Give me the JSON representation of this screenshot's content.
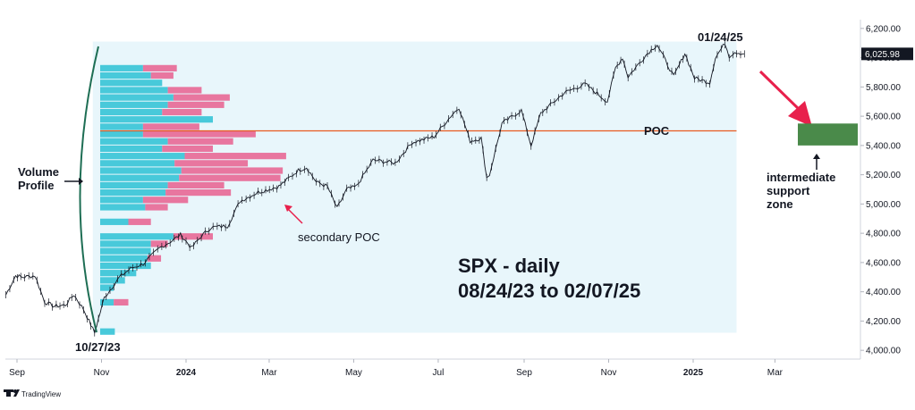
{
  "chart_data": {
    "type": "line",
    "title": "SPX - daily",
    "subtitle": "08/24/23 to 02/07/25",
    "ylim": [
      3940,
      6260
    ],
    "y_ticks": [
      {
        "value": 4000,
        "label": "4,000.00"
      },
      {
        "value": 4200,
        "label": "4,200.00"
      },
      {
        "value": 4400,
        "label": "4,400.00"
      },
      {
        "value": 4600,
        "label": "4,600.00"
      },
      {
        "value": 4800,
        "label": "4,800.00"
      },
      {
        "value": 5000,
        "label": "5,000.00"
      },
      {
        "value": 5200,
        "label": "5,200.00"
      },
      {
        "value": 5400,
        "label": "5,400.00"
      },
      {
        "value": 5600,
        "label": "5,600.00"
      },
      {
        "value": 5800,
        "label": "5,800.00"
      },
      {
        "value": 6000,
        "label": "6,000.00"
      },
      {
        "value": 6200,
        "label": "6,200.00"
      }
    ],
    "x_ticks": [
      {
        "date": "2023-09-01",
        "label": "Sep",
        "bold": false
      },
      {
        "date": "2023-11-01",
        "label": "Nov",
        "bold": false
      },
      {
        "date": "2024-01-01",
        "label": "2024",
        "bold": true
      },
      {
        "date": "2024-03-01",
        "label": "Mar",
        "bold": false
      },
      {
        "date": "2024-05-01",
        "label": "May",
        "bold": false
      },
      {
        "date": "2024-07-01",
        "label": "Jul",
        "bold": false
      },
      {
        "date": "2024-09-01",
        "label": "Sep",
        "bold": false
      },
      {
        "date": "2024-11-01",
        "label": "Nov",
        "bold": false
      },
      {
        "date": "2025-01-01",
        "label": "2025",
        "bold": true
      },
      {
        "date": "2025-03-01",
        "label": "Mar",
        "bold": false
      }
    ],
    "last_price": {
      "value": 6025.98,
      "label": "6,025.98"
    },
    "series": [
      {
        "points": [
          [
            "2023-08-24",
            4380
          ],
          [
            "2023-08-31",
            4510
          ],
          [
            "2023-09-05",
            4500
          ],
          [
            "2023-09-14",
            4510
          ],
          [
            "2023-09-21",
            4330
          ],
          [
            "2023-09-28",
            4300
          ],
          [
            "2023-10-06",
            4310
          ],
          [
            "2023-10-12",
            4380
          ],
          [
            "2023-10-19",
            4280
          ],
          [
            "2023-10-27",
            4120
          ],
          [
            "2023-11-03",
            4360
          ],
          [
            "2023-11-14",
            4500
          ],
          [
            "2023-11-22",
            4560
          ],
          [
            "2023-12-01",
            4590
          ],
          [
            "2023-12-13",
            4700
          ],
          [
            "2023-12-22",
            4750
          ],
          [
            "2023-12-28",
            4790
          ],
          [
            "2024-01-05",
            4700
          ],
          [
            "2024-01-12",
            4780
          ],
          [
            "2024-01-19",
            4840
          ],
          [
            "2024-01-31",
            4850
          ],
          [
            "2024-02-09",
            5020
          ],
          [
            "2024-02-22",
            5080
          ],
          [
            "2024-03-08",
            5120
          ],
          [
            "2024-03-22",
            5230
          ],
          [
            "2024-03-28",
            5250
          ],
          [
            "2024-04-04",
            5150
          ],
          [
            "2024-04-12",
            5120
          ],
          [
            "2024-04-19",
            4970
          ],
          [
            "2024-04-26",
            5100
          ],
          [
            "2024-05-03",
            5120
          ],
          [
            "2024-05-15",
            5300
          ],
          [
            "2024-05-31",
            5280
          ],
          [
            "2024-06-12",
            5420
          ],
          [
            "2024-06-28",
            5460
          ],
          [
            "2024-07-10",
            5600
          ],
          [
            "2024-07-16",
            5660
          ],
          [
            "2024-07-24",
            5430
          ],
          [
            "2024-08-01",
            5450
          ],
          [
            "2024-08-05",
            5180
          ],
          [
            "2024-08-07",
            5200
          ],
          [
            "2024-08-16",
            5550
          ],
          [
            "2024-08-30",
            5640
          ],
          [
            "2024-09-06",
            5400
          ],
          [
            "2024-09-13",
            5620
          ],
          [
            "2024-09-30",
            5760
          ],
          [
            "2024-10-15",
            5820
          ],
          [
            "2024-10-31",
            5700
          ],
          [
            "2024-11-06",
            5930
          ],
          [
            "2024-11-11",
            6000
          ],
          [
            "2024-11-15",
            5870
          ],
          [
            "2024-11-29",
            6030
          ],
          [
            "2024-12-06",
            6090
          ],
          [
            "2024-12-18",
            5870
          ],
          [
            "2024-12-26",
            6030
          ],
          [
            "2025-01-02",
            5860
          ],
          [
            "2025-01-13",
            5830
          ],
          [
            "2025-01-17",
            6000
          ],
          [
            "2025-01-24",
            6100
          ],
          [
            "2025-01-27",
            6010
          ],
          [
            "2025-01-31",
            6040
          ],
          [
            "2025-02-07",
            6025.98
          ]
        ]
      }
    ],
    "volume_profile": {
      "rows": [
        {
          "low": 4100,
          "high": 4150,
          "up": 0.13,
          "down": 0.0
        },
        {
          "low": 4150,
          "high": 4200,
          "up": 0.0,
          "down": 0.0
        },
        {
          "low": 4300,
          "high": 4350,
          "up": 0.12,
          "down": 0.13
        },
        {
          "low": 4400,
          "high": 4450,
          "up": 0.12,
          "down": 0.0
        },
        {
          "low": 4450,
          "high": 4500,
          "up": 0.22,
          "down": 0.0
        },
        {
          "low": 4500,
          "high": 4550,
          "up": 0.32,
          "down": 0.0
        },
        {
          "low": 4550,
          "high": 4600,
          "up": 0.45,
          "down": 0.0
        },
        {
          "low": 4600,
          "high": 4650,
          "up": 0.42,
          "down": 0.12
        },
        {
          "low": 4650,
          "high": 4700,
          "up": 0.45,
          "down": 0.0
        },
        {
          "low": 4700,
          "high": 4750,
          "up": 0.45,
          "down": 0.15
        },
        {
          "low": 4750,
          "high": 4800,
          "up": 0.65,
          "down": 0.35
        },
        {
          "low": 4850,
          "high": 4900,
          "up": 0.25,
          "down": 0.2
        },
        {
          "low": 4950,
          "high": 5000,
          "up": 0.4,
          "down": 0.2
        },
        {
          "low": 5000,
          "high": 5050,
          "up": 0.38,
          "down": 0.4
        },
        {
          "low": 5050,
          "high": 5100,
          "up": 0.58,
          "down": 0.58
        },
        {
          "low": 5100,
          "high": 5150,
          "up": 0.6,
          "down": 0.5
        },
        {
          "low": 5150,
          "high": 5200,
          "up": 0.7,
          "down": 0.9
        },
        {
          "low": 5200,
          "high": 5250,
          "up": 0.72,
          "down": 0.9
        },
        {
          "low": 5250,
          "high": 5300,
          "up": 0.66,
          "down": 0.65
        },
        {
          "low": 5300,
          "high": 5350,
          "up": 0.75,
          "down": 0.9
        },
        {
          "low": 5350,
          "high": 5400,
          "up": 0.55,
          "down": 0.45
        },
        {
          "low": 5400,
          "high": 5450,
          "up": 0.6,
          "down": 0.58
        },
        {
          "low": 5450,
          "high": 5500,
          "up": 0.38,
          "down": 1.0
        },
        {
          "low": 5500,
          "high": 5550,
          "up": 0.38,
          "down": 0.5
        },
        {
          "low": 5550,
          "high": 5600,
          "up": 1.0,
          "down": 0.0
        },
        {
          "low": 5600,
          "high": 5650,
          "up": 0.55,
          "down": 0.35
        },
        {
          "low": 5650,
          "high": 5700,
          "up": 0.6,
          "down": 0.5
        },
        {
          "low": 5700,
          "high": 5750,
          "up": 0.65,
          "down": 0.5
        },
        {
          "low": 5750,
          "high": 5800,
          "up": 0.6,
          "down": 0.3
        },
        {
          "low": 5800,
          "high": 5850,
          "up": 0.55,
          "down": 0.0
        },
        {
          "low": 5850,
          "high": 5900,
          "up": 0.45,
          "down": 0.2
        },
        {
          "low": 5900,
          "high": 5950,
          "up": 0.38,
          "down": 0.3
        }
      ],
      "poc": 5500,
      "range_start": "2023-10-27",
      "range_end": "2025-01-31",
      "profile_high": 6110,
      "profile_low": 4120
    },
    "support_zone": {
      "low": 5400,
      "high": 5550,
      "color": "#4a8a4a"
    },
    "colors": {
      "up": "#3fc6d8",
      "down": "#e86f9a",
      "poc_line": "#e85a1f",
      "profile_bg": "#e8f6fb",
      "arc": "#1e6e54",
      "arrow_red": "#e8204c"
    },
    "annotations": {
      "volume_profile_label_1": "Volume",
      "volume_profile_label_2": "Profile",
      "poc_label": "POC",
      "secondary_poc_label": "secondary POC",
      "low_date_label": "10/27/23",
      "high_date_label": "01/24/25",
      "support_label_1": "intermediate",
      "support_label_2": "support",
      "support_label_3": "zone"
    }
  },
  "brand": {
    "name": "TradingView",
    "logo_icon": "tradingview-logo-icon"
  }
}
